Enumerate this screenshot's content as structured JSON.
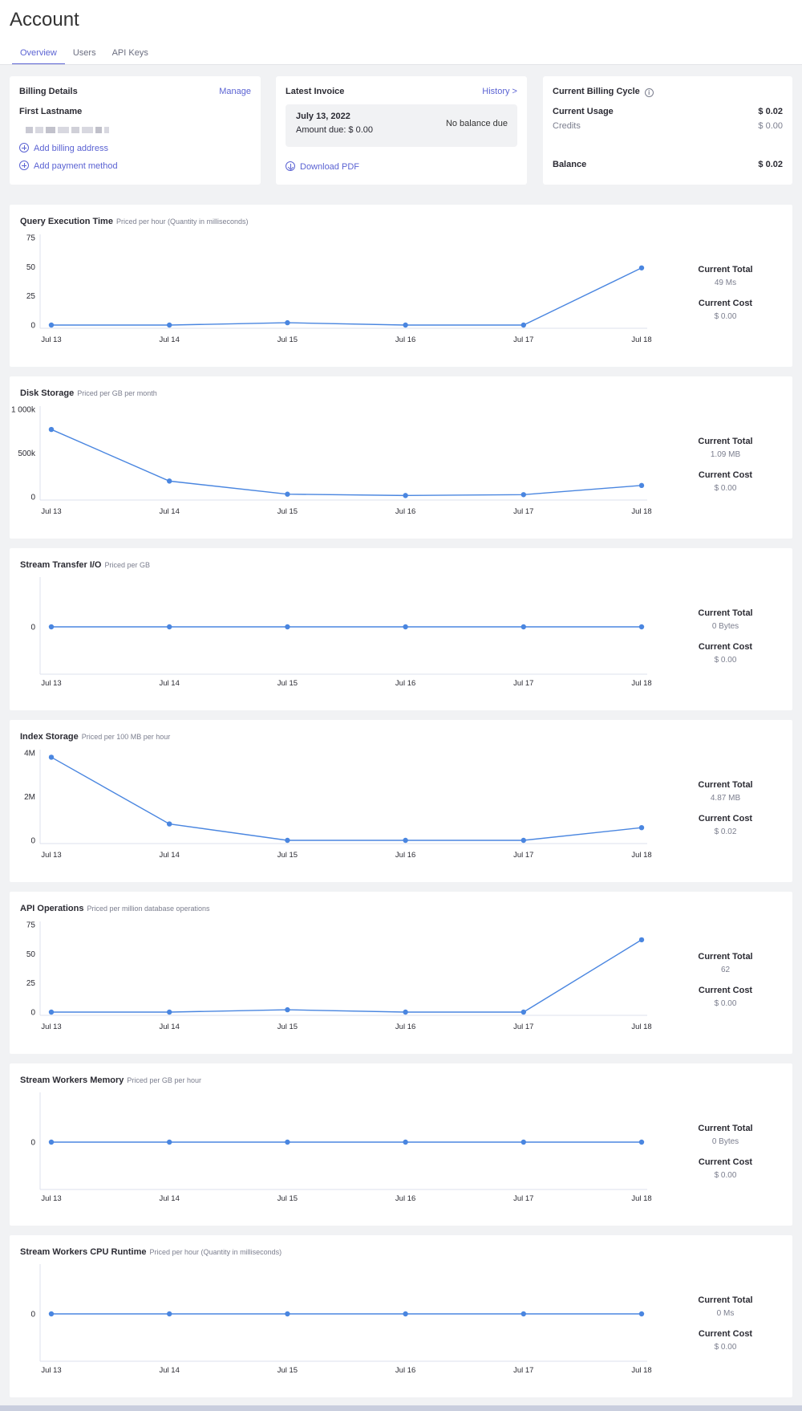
{
  "page": {
    "title": "Account"
  },
  "tabs": [
    {
      "label": "Overview",
      "active": true
    },
    {
      "label": "Users",
      "active": false
    },
    {
      "label": "API Keys",
      "active": false
    }
  ],
  "billing": {
    "title": "Billing Details",
    "manage": "Manage",
    "name": "First Lastname",
    "add_address": "Add billing address",
    "add_payment": "Add payment method"
  },
  "invoice": {
    "title": "Latest Invoice",
    "history": "History >",
    "date": "July 13, 2022",
    "amount_due": "Amount due: $ 0.00",
    "status": "No balance due",
    "download": "Download PDF"
  },
  "cycle": {
    "title": "Current Billing Cycle",
    "usage_label": "Current Usage",
    "usage_value": "$ 0.02",
    "credits_label": "Credits",
    "credits_value": "$ 0.00",
    "balance_label": "Balance",
    "balance_value": "$ 0.02"
  },
  "stat_labels": {
    "total": "Current Total",
    "cost": "Current Cost"
  },
  "colors": {
    "accent": "#5b63d3",
    "line": "#4a86e0"
  },
  "chart_data": [
    {
      "type": "line",
      "title": "Query Execution Time",
      "subtitle": "Priced per hour (Quantity in milliseconds)",
      "categories": [
        "Jul 13",
        "Jul 14",
        "Jul 15",
        "Jul 16",
        "Jul 17",
        "Jul 18"
      ],
      "values": [
        0,
        0,
        2,
        0,
        0,
        49
      ],
      "ylim": [
        0,
        75
      ],
      "yticks": [
        "75",
        "50",
        "25",
        "0"
      ],
      "ytick_values": [
        75,
        50,
        25,
        0
      ],
      "current_total": "49 Ms",
      "current_cost": "$ 0.00"
    },
    {
      "type": "line",
      "title": "Disk Storage",
      "subtitle": "Priced per GB per month",
      "categories": [
        "Jul 13",
        "Jul 14",
        "Jul 15",
        "Jul 16",
        "Jul 17",
        "Jul 18"
      ],
      "values": [
        770000,
        180000,
        30000,
        15000,
        25000,
        130000
      ],
      "ylim": [
        0,
        1000000
      ],
      "yticks": [
        "1 000k",
        "500k",
        "0"
      ],
      "ytick_values": [
        1000000,
        500000,
        0
      ],
      "current_total": "1.09 MB",
      "current_cost": "$ 0.00"
    },
    {
      "type": "line",
      "title": "Stream Transfer I/O",
      "subtitle": "Priced per GB",
      "categories": [
        "Jul 13",
        "Jul 14",
        "Jul 15",
        "Jul 16",
        "Jul 17",
        "Jul 18"
      ],
      "values": [
        0,
        0,
        0,
        0,
        0,
        0
      ],
      "ylim": [
        -1,
        1
      ],
      "yticks": [
        "0"
      ],
      "ytick_values": [
        0
      ],
      "current_total": "0 Bytes",
      "current_cost": "$ 0.00"
    },
    {
      "type": "line",
      "title": "Index Storage",
      "subtitle": "Priced per 100 MB per hour",
      "categories": [
        "Jul 13",
        "Jul 14",
        "Jul 15",
        "Jul 16",
        "Jul 17",
        "Jul 18"
      ],
      "values": [
        3800000,
        750000,
        0,
        0,
        0,
        580000
      ],
      "ylim": [
        0,
        4000000
      ],
      "yticks": [
        "4M",
        "2M",
        "0"
      ],
      "ytick_values": [
        4000000,
        2000000,
        0
      ],
      "current_total": "4.87 MB",
      "current_cost": "$ 0.02"
    },
    {
      "type": "line",
      "title": "API Operations",
      "subtitle": "Priced per million database operations",
      "categories": [
        "Jul 13",
        "Jul 14",
        "Jul 15",
        "Jul 16",
        "Jul 17",
        "Jul 18"
      ],
      "values": [
        0,
        0,
        2,
        0,
        0,
        62
      ],
      "ylim": [
        0,
        75
      ],
      "yticks": [
        "75",
        "50",
        "25",
        "0"
      ],
      "ytick_values": [
        75,
        50,
        25,
        0
      ],
      "current_total": "62",
      "current_cost": "$ 0.00"
    },
    {
      "type": "line",
      "title": "Stream Workers Memory",
      "subtitle": "Priced per GB per hour",
      "categories": [
        "Jul 13",
        "Jul 14",
        "Jul 15",
        "Jul 16",
        "Jul 17",
        "Jul 18"
      ],
      "values": [
        0,
        0,
        0,
        0,
        0,
        0
      ],
      "ylim": [
        -1,
        1
      ],
      "yticks": [
        "0"
      ],
      "ytick_values": [
        0
      ],
      "current_total": "0 Bytes",
      "current_cost": "$ 0.00"
    },
    {
      "type": "line",
      "title": "Stream Workers CPU Runtime",
      "subtitle": "Priced per hour (Quantity in milliseconds)",
      "categories": [
        "Jul 13",
        "Jul 14",
        "Jul 15",
        "Jul 16",
        "Jul 17",
        "Jul 18"
      ],
      "values": [
        0,
        0,
        0,
        0,
        0,
        0
      ],
      "ylim": [
        -1,
        1
      ],
      "yticks": [
        "0"
      ],
      "ytick_values": [
        0
      ],
      "current_total": "0 Ms",
      "current_cost": "$ 0.00"
    }
  ]
}
